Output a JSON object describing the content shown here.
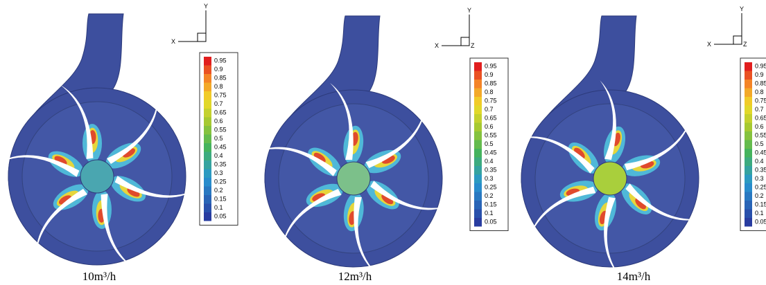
{
  "panels": [
    {
      "caption": "10m³/h",
      "axes": [
        "Y",
        "X"
      ]
    },
    {
      "caption": "12m³/h",
      "axes": [
        "Y",
        "X",
        "Z"
      ]
    },
    {
      "caption": "14m³/h",
      "axes": [
        "Y",
        "X",
        "Z"
      ]
    }
  ],
  "legend": {
    "labels": [
      0.95,
      0.9,
      0.85,
      0.8,
      0.75,
      0.7,
      0.65,
      0.6,
      0.55,
      0.5,
      0.45,
      0.4,
      0.35,
      0.3,
      0.25,
      0.2,
      0.15,
      0.1,
      0.05
    ]
  }
}
